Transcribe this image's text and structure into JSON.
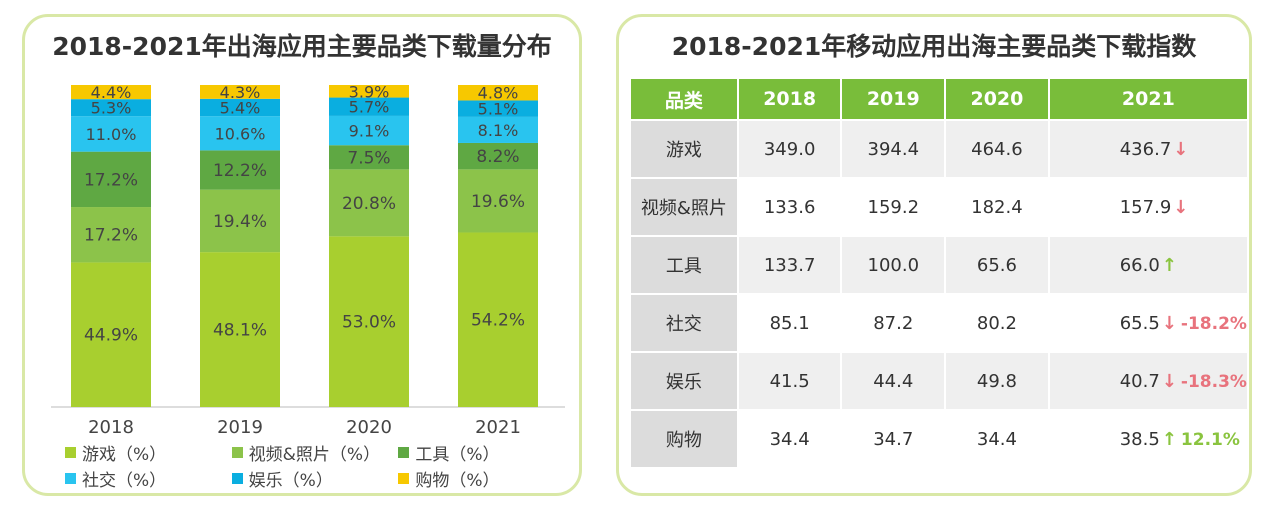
{
  "chart_data": [
    {
      "type": "bar",
      "stacked": true,
      "title": "2018-2021年出海应用主要品类下载量分布",
      "categories": [
        "2018",
        "2019",
        "2020",
        "2021"
      ],
      "series": [
        {
          "name": "游戏（%）",
          "color": "#a8cf2f",
          "values": [
            44.9,
            48.1,
            53.0,
            54.2
          ],
          "labels": [
            "44.9%",
            "48.1%",
            "53.0%",
            "54.2%"
          ]
        },
        {
          "name": "视频&照片（%）",
          "color": "#8cc34a",
          "values": [
            17.2,
            19.4,
            20.8,
            19.6
          ],
          "labels": [
            "17.2%",
            "19.4%",
            "20.8%",
            "19.6%"
          ]
        },
        {
          "name": "工具（%）",
          "color": "#5fa843",
          "values": [
            17.2,
            12.2,
            7.5,
            8.2
          ],
          "labels": [
            "17.2%",
            "12.2%",
            "7.5%",
            "8.2%"
          ]
        },
        {
          "name": "社交（%）",
          "color": "#29c4ef",
          "values": [
            11.0,
            10.6,
            9.1,
            8.1
          ],
          "labels": [
            "11.0%",
            "10.6%",
            "9.1%",
            "8.1%"
          ]
        },
        {
          "name": "娱乐（%）",
          "color": "#0aaee0",
          "values": [
            5.3,
            5.4,
            5.7,
            5.1
          ],
          "labels": [
            "5.3%",
            "5.4%",
            "5.7%",
            "5.1%"
          ]
        },
        {
          "name": "购物（%）",
          "color": "#f7c800",
          "values": [
            4.4,
            4.3,
            3.9,
            4.8
          ],
          "labels": [
            "4.4%",
            "4.3%",
            "3.9%",
            "4.8%"
          ]
        }
      ],
      "ylim": [
        0,
        100
      ],
      "legend": "bottom"
    },
    {
      "type": "table",
      "title": "2018-2021年移动应用出海主要品类下载指数",
      "columns": [
        "品类",
        "2018",
        "2019",
        "2020",
        "2021"
      ],
      "rows": [
        {
          "category": "游戏",
          "v2018": "349.0",
          "v2019": "394.4",
          "v2020": "464.6",
          "v2021": "436.7",
          "trend": "down",
          "change": ""
        },
        {
          "category": "视频&照片",
          "v2018": "133.6",
          "v2019": "159.2",
          "v2020": "182.4",
          "v2021": "157.9",
          "trend": "down",
          "change": ""
        },
        {
          "category": "工具",
          "v2018": "133.7",
          "v2019": "100.0",
          "v2020": "65.6",
          "v2021": "66.0",
          "trend": "up",
          "change": ""
        },
        {
          "category": "社交",
          "v2018": "85.1",
          "v2019": "87.2",
          "v2020": "80.2",
          "v2021": "65.5",
          "trend": "down",
          "change": "-18.2%"
        },
        {
          "category": "娱乐",
          "v2018": "41.5",
          "v2019": "44.4",
          "v2020": "49.8",
          "v2021": "40.7",
          "trend": "down",
          "change": "-18.3%"
        },
        {
          "category": "购物",
          "v2018": "34.4",
          "v2019": "34.7",
          "v2020": "34.4",
          "v2021": "38.5",
          "trend": "up",
          "change": "12.1%"
        }
      ],
      "colors": {
        "header": "#79bd3a",
        "up": "#8ac43f",
        "down": "#e8737d"
      }
    }
  ]
}
